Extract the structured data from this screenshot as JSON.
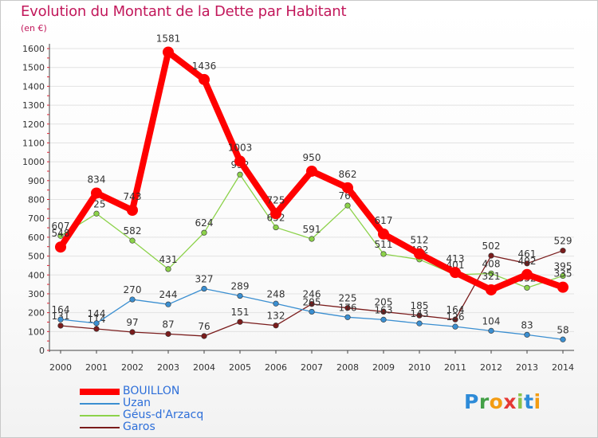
{
  "title": "Evolution du Montant de la Dette par Habitant",
  "unit": "(en €)",
  "logo": {
    "letters": [
      {
        "ch": "P",
        "color": "#2e8bd8"
      },
      {
        "ch": "r",
        "color": "#43a047"
      },
      {
        "ch": "o",
        "color": "#f39c12"
      },
      {
        "ch": "x",
        "color": "#e53935"
      },
      {
        "ch": "i",
        "color": "#8bc34a"
      },
      {
        "ch": "t",
        "color": "#2e8bd8"
      },
      {
        "ch": "i",
        "color": "#f39c12"
      }
    ]
  },
  "chart_data": {
    "type": "line",
    "title": "Evolution du Montant de la Dette par Habitant",
    "ylabel": "(en €)",
    "xlabel": "",
    "ylim": [
      0,
      1600
    ],
    "yticks": [
      0,
      100,
      200,
      300,
      400,
      500,
      600,
      700,
      800,
      900,
      1000,
      1100,
      1200,
      1300,
      1400,
      1500,
      1600
    ],
    "x": [
      "2000",
      "2001",
      "2002",
      "2003",
      "2004",
      "2005",
      "2006",
      "2007",
      "2008",
      "2009",
      "2010",
      "2011",
      "2012",
      "2013",
      "2014"
    ],
    "series": [
      {
        "name": "Garos",
        "color": "#7a1c1c",
        "values": [
          131,
          114,
          97,
          87,
          76,
          151,
          132,
          246,
          225,
          205,
          185,
          164,
          502,
          461,
          529
        ],
        "labels": [
          "131",
          "114",
          "97",
          "87",
          "76",
          "151",
          "132",
          "246",
          "225",
          "205",
          "185",
          "164",
          "502",
          "461",
          "529"
        ]
      },
      {
        "name": "Uzan",
        "color": "#3b8fd1",
        "values": [
          164,
          144,
          270,
          244,
          327,
          289,
          248,
          205,
          176,
          163,
          143,
          126,
          104,
          83,
          58
        ],
        "labels": [
          "164",
          "144",
          "270",
          "244",
          "327",
          "289",
          "248",
          "205",
          "176",
          "163",
          "143",
          "126",
          "104",
          "83",
          "58"
        ]
      },
      {
        "name": "Géus-d'Arzacq",
        "color": "#8cd24a",
        "values": [
          607,
          725,
          582,
          431,
          624,
          932,
          652,
          591,
          768,
          511,
          482,
          401,
          408,
          332,
          395
        ],
        "labels": [
          "607",
          "725",
          "582",
          "431",
          "624",
          "932",
          "652",
          "591",
          "768",
          "511",
          "482",
          "401",
          "408",
          "332",
          "395"
        ]
      },
      {
        "name": "BOUILLON",
        "color": "#ff0000",
        "values": [
          548,
          834,
          743,
          1581,
          1436,
          1003,
          725,
          950,
          862,
          617,
          512,
          413,
          321,
          402,
          335
        ],
        "labels": [
          "548",
          "834",
          "743",
          "1581",
          "1436",
          "1003",
          "725",
          "950",
          "862",
          "617",
          "512",
          "413",
          "321",
          "402",
          "335"
        ]
      }
    ],
    "legend": [
      {
        "name": "BOUILLON",
        "color": "#ff0000",
        "label_color": "#2e6fd9",
        "thick": true
      },
      {
        "name": "Uzan",
        "color": "#3b8fd1",
        "label_color": "#2e6fd9",
        "thick": false
      },
      {
        "name": "Géus-d'Arzacq",
        "color": "#8cd24a",
        "label_color": "#2e6fd9",
        "thick": false
      },
      {
        "name": "Garos",
        "color": "#7a1c1c",
        "label_color": "#2e6fd9",
        "thick": false
      }
    ]
  }
}
